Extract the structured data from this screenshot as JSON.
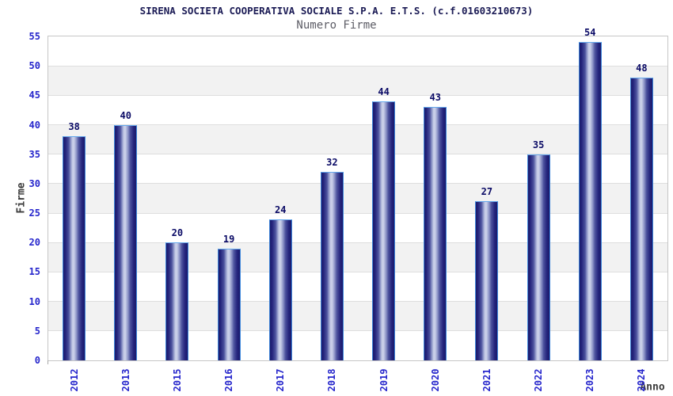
{
  "chart_data": {
    "type": "bar",
    "title": "SIRENA SOCIETA COOPERATIVA SOCIALE S.P.A. E.T.S. (c.f.01603210673)",
    "subtitle": "Numero Firme",
    "xlabel": "Anno",
    "ylabel": "Firme",
    "categories": [
      "2012",
      "2013",
      "2015",
      "2016",
      "2017",
      "2018",
      "2019",
      "2020",
      "2021",
      "2022",
      "2023",
      "2024"
    ],
    "values": [
      38,
      40,
      20,
      19,
      24,
      32,
      44,
      43,
      27,
      35,
      54,
      48
    ],
    "ylim": [
      0,
      55
    ],
    "ytick_step": 5,
    "legend": "none",
    "grid": "alternating-horizontal-bands",
    "colors": {
      "title": "#1b1b55",
      "subtitle": "#5d5d66",
      "tick_label_blue": "#2626cc",
      "value_label_navy": "#0b0b66",
      "axis_title_gray": "#3b3b3b",
      "band_gray": "#f2f2f2",
      "band_white": "#ffffff",
      "gridline": "#dedede",
      "frame": "#c6c6c6",
      "bar_border": "#3e86da",
      "bar_border_top": "#64a8ec",
      "bar_dark": "#1a1a6b",
      "bar_mid": "#8a92c6",
      "bar_light": "#c9cfe8"
    }
  }
}
